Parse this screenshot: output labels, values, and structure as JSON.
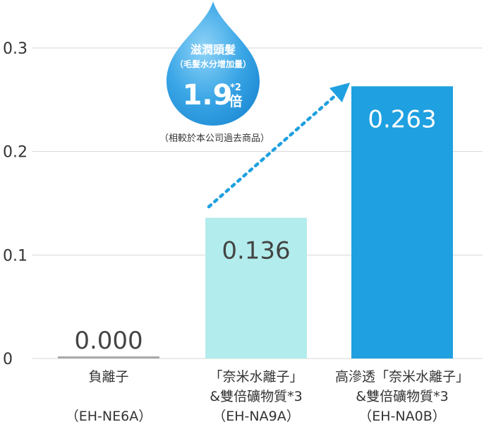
{
  "chart_data": {
    "type": "bar",
    "ylim": [
      0,
      0.3
    ],
    "yticks": [
      {
        "value": 0,
        "label": "0"
      },
      {
        "value": 0.1,
        "label": "0.1"
      },
      {
        "value": 0.2,
        "label": "0.2"
      },
      {
        "value": 0.3,
        "label": "0.3"
      }
    ],
    "grid": true,
    "categories": [
      {
        "lines": [
          "負離子",
          "",
          "（EH-NE6A）"
        ]
      },
      {
        "lines": [
          "「奈米水離子」",
          "&雙倍礦物質*3",
          "（EH-NA9A）"
        ]
      },
      {
        "lines": [
          "高滲透「奈米水離子」",
          "&雙倍礦物質*3",
          "（EH-NA0B）"
        ]
      }
    ],
    "values": [
      0.0,
      0.136,
      0.263
    ],
    "value_labels": [
      "0.000",
      "0.136",
      "0.263"
    ],
    "bar_colors": [
      "#aaaaaa",
      "#b3ecec",
      "#1fa0e0"
    ],
    "value_label_colors": [
      "#444444",
      "#444444",
      "#ffffff"
    ],
    "annotation": {
      "title": "滋潤頭髮",
      "subtitle": "（毛髮水分增加量）",
      "multiplier": "1.9",
      "footnote_mark": "*2",
      "unit": "倍",
      "note": "（相較於本公司過去商品）"
    }
  }
}
